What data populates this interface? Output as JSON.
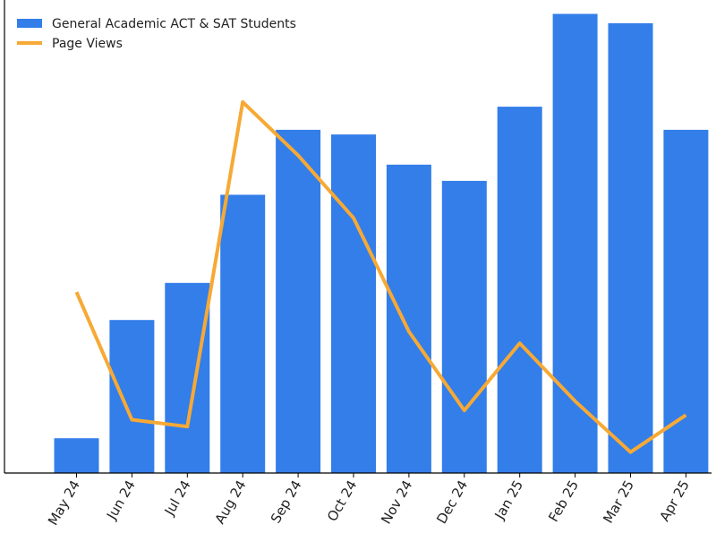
{
  "chart_data": {
    "type": "bar",
    "categories": [
      "May 24",
      "Jun 24",
      "Jul 24",
      "Aug 24",
      "Sep 24",
      "Oct 24",
      "Nov 24",
      "Dec 24",
      "Jan 25",
      "Feb 25",
      "Mar 25",
      "Apr 25"
    ],
    "series": [
      {
        "name": "General Academic ACT & SAT Students",
        "type": "bar",
        "color": "#337ee9",
        "values": [
          7.5,
          33,
          41,
          60,
          74,
          73,
          66.5,
          63,
          79,
          99,
          97,
          74
        ]
      },
      {
        "name": "Page Views",
        "type": "line",
        "color": "#f7a935",
        "values": [
          39,
          11.5,
          10,
          80,
          68.5,
          55,
          30.5,
          13.5,
          28,
          15.5,
          4.5,
          12.5
        ]
      }
    ],
    "ylim": [
      0,
      102
    ],
    "y_ticks_visible": false,
    "grid": false,
    "legend": "top-left",
    "title": "",
    "xlabel": "",
    "ylabel": ""
  }
}
